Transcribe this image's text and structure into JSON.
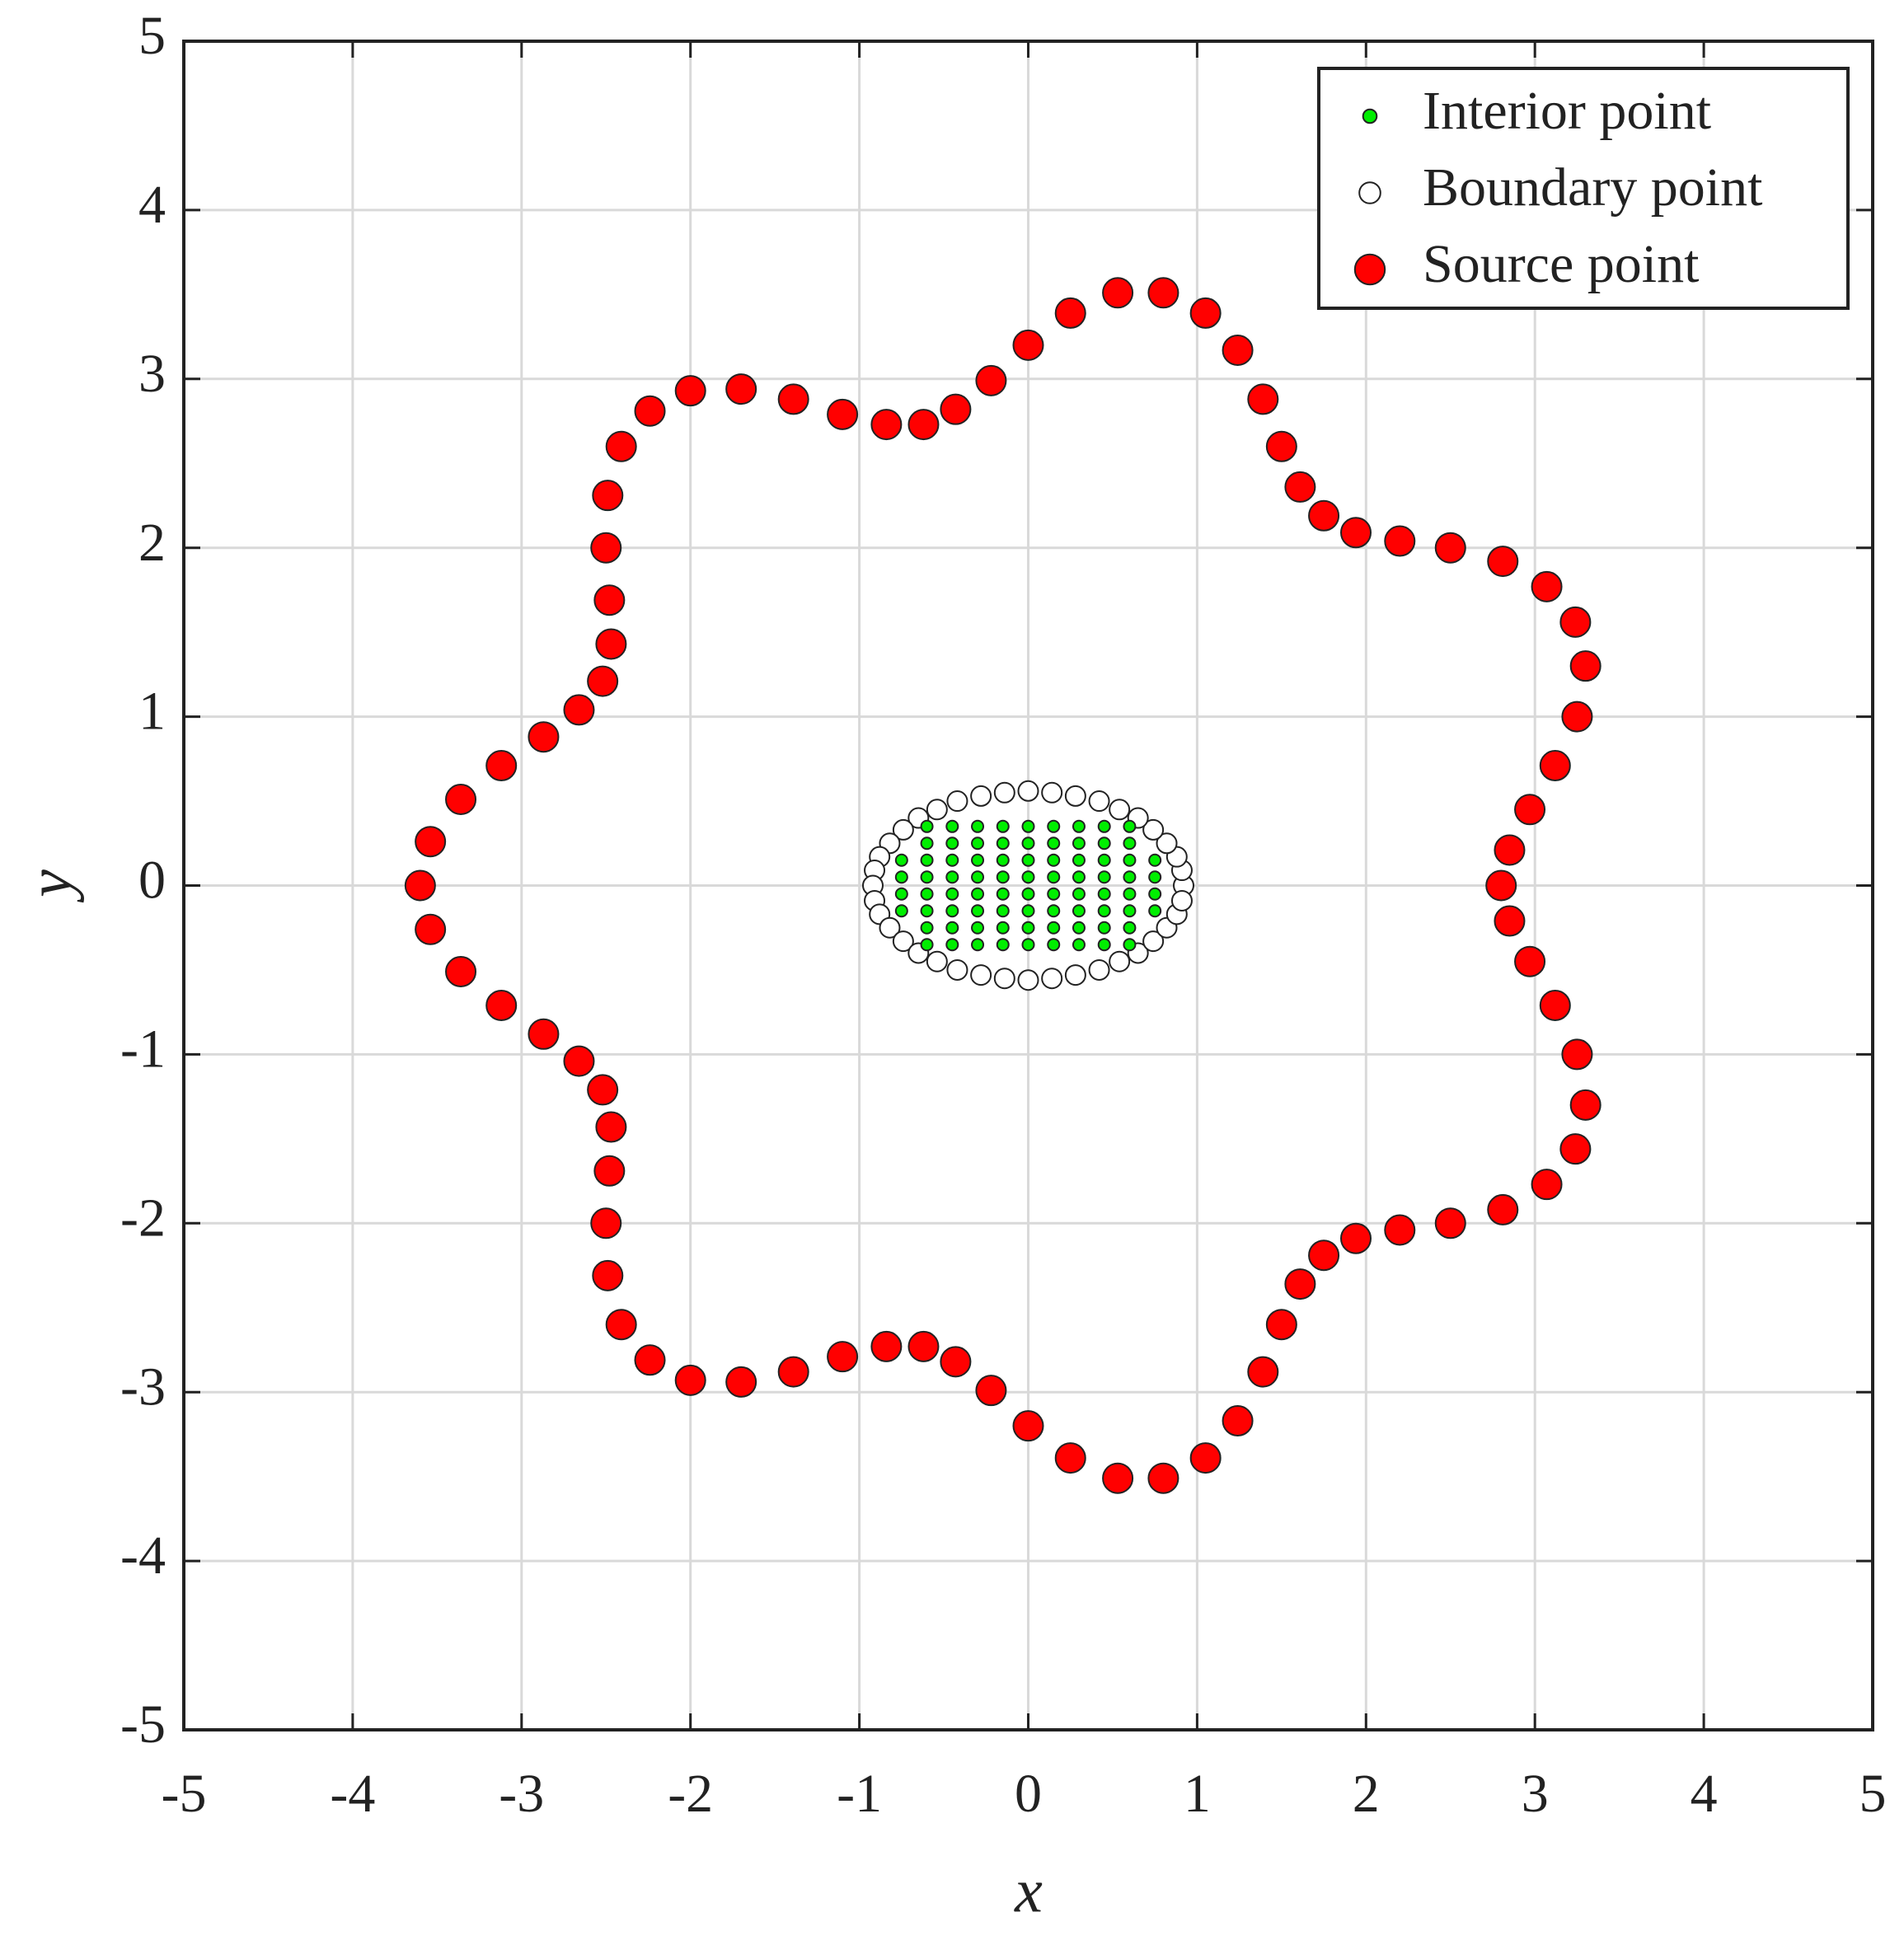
{
  "chart_data": {
    "type": "scatter",
    "xlabel": "x",
    "ylabel": "y",
    "xlim": [
      -5,
      5
    ],
    "ylim": [
      -5,
      5
    ],
    "xticks": [
      -5,
      -4,
      -3,
      -2,
      -1,
      0,
      1,
      2,
      3,
      4,
      5
    ],
    "yticks": [
      -5,
      -4,
      -3,
      -2,
      -1,
      0,
      1,
      2,
      3,
      4,
      5
    ],
    "grid": true,
    "legend": "upper right",
    "series": [
      {
        "name": "Interior point",
        "color": "#00ee00",
        "x": [
          -0.6,
          -0.45,
          -0.3,
          -0.15,
          0,
          0.15,
          0.3,
          0.45,
          0.6,
          -0.6,
          -0.45,
          -0.3,
          -0.15,
          0,
          0.15,
          0.3,
          0.45,
          0.6,
          -0.75,
          -0.6,
          -0.45,
          -0.3,
          -0.15,
          0,
          0.15,
          0.3,
          0.45,
          0.6,
          0.75,
          -0.75,
          -0.6,
          -0.45,
          -0.3,
          -0.15,
          0,
          0.15,
          0.3,
          0.45,
          0.6,
          0.75,
          -0.75,
          -0.6,
          -0.45,
          -0.3,
          -0.15,
          0,
          0.15,
          0.3,
          0.45,
          0.6,
          0.75,
          -0.75,
          -0.6,
          -0.45,
          -0.3,
          -0.15,
          0,
          0.15,
          0.3,
          0.45,
          0.6,
          0.75,
          -0.6,
          -0.45,
          -0.3,
          -0.15,
          0,
          0.15,
          0.3,
          0.45,
          0.6,
          -0.6,
          -0.45,
          -0.3,
          -0.15,
          0,
          0.15,
          0.3,
          0.45,
          0.6
        ],
        "values": [
          0.35,
          0.35,
          0.35,
          0.35,
          0.35,
          0.35,
          0.35,
          0.35,
          0.35,
          0.25,
          0.25,
          0.25,
          0.25,
          0.25,
          0.25,
          0.25,
          0.25,
          0.25,
          0.15,
          0.15,
          0.15,
          0.15,
          0.15,
          0.15,
          0.15,
          0.15,
          0.15,
          0.15,
          0.15,
          0.05,
          0.05,
          0.05,
          0.05,
          0.05,
          0.05,
          0.05,
          0.05,
          0.05,
          0.05,
          0.05,
          -0.05,
          -0.05,
          -0.05,
          -0.05,
          -0.05,
          -0.05,
          -0.05,
          -0.05,
          -0.05,
          -0.05,
          -0.05,
          -0.15,
          -0.15,
          -0.15,
          -0.15,
          -0.15,
          -0.15,
          -0.15,
          -0.15,
          -0.15,
          -0.15,
          -0.15,
          -0.25,
          -0.25,
          -0.25,
          -0.25,
          -0.25,
          -0.25,
          -0.25,
          -0.25,
          -0.25,
          -0.35,
          -0.35,
          -0.35,
          -0.35,
          -0.35,
          -0.35,
          -0.35,
          -0.35,
          -0.35
        ]
      },
      {
        "name": "Boundary point",
        "color": "#ffffff",
        "x": [
          0.92,
          0.91,
          0.88,
          0.82,
          0.74,
          0.65,
          0.54,
          0.42,
          0.28,
          0.14,
          0,
          -0.14,
          -0.28,
          -0.42,
          -0.54,
          -0.65,
          -0.74,
          -0.82,
          -0.88,
          -0.91,
          -0.92,
          -0.91,
          -0.88,
          -0.82,
          -0.74,
          -0.65,
          -0.54,
          -0.42,
          -0.28,
          -0.14,
          0,
          0.14,
          0.28,
          0.42,
          0.54,
          0.65,
          0.74,
          0.82,
          0.88,
          0.91
        ],
        "values": [
          0,
          0.09,
          0.17,
          0.25,
          0.33,
          0.4,
          0.45,
          0.5,
          0.53,
          0.55,
          0.56,
          0.55,
          0.53,
          0.5,
          0.45,
          0.4,
          0.33,
          0.25,
          0.17,
          0.09,
          0,
          -0.09,
          -0.17,
          -0.25,
          -0.33,
          -0.4,
          -0.45,
          -0.5,
          -0.53,
          -0.55,
          -0.56,
          -0.55,
          -0.53,
          -0.5,
          -0.45,
          -0.4,
          -0.33,
          -0.25,
          -0.17,
          -0.09
        ]
      },
      {
        "name": "Source point",
        "color": "#ff0000",
        "x": [
          2.8,
          2.85,
          2.97,
          3.12,
          3.25,
          3.3,
          3.24,
          3.07,
          2.81,
          2.5,
          2.2,
          1.94,
          1.75,
          1.61,
          1.5,
          1.39,
          1.24,
          1.05,
          0.8,
          0.53,
          0.25,
          0,
          -0.22,
          -0.43,
          -0.62,
          -0.84,
          -1.1,
          -1.39,
          -1.7,
          -2,
          -2.24,
          -2.41,
          -2.49,
          -2.5,
          -2.48,
          -2.47,
          -2.52,
          -2.66,
          -2.87,
          -3.12,
          -3.36,
          -3.54,
          -3.6,
          -3.54,
          -3.36,
          -3.12,
          -2.87,
          -2.66,
          -2.52,
          -2.47,
          -2.48,
          -2.5,
          -2.49,
          -2.41,
          -2.24,
          -2,
          -1.7,
          -1.39,
          -1.1,
          -0.84,
          -0.62,
          -0.43,
          -0.22,
          0,
          0.25,
          0.53,
          0.8,
          1.05,
          1.24,
          1.39,
          1.5,
          1.61,
          1.75,
          1.94,
          2.2,
          2.5,
          2.81,
          3.07,
          3.24,
          3.3,
          3.25,
          3.12,
          2.97,
          2.85
        ],
        "values": [
          0,
          0.21,
          0.45,
          0.71,
          1,
          1.3,
          1.56,
          1.77,
          1.92,
          2,
          2.04,
          2.09,
          2.19,
          2.36,
          2.6,
          2.88,
          3.17,
          3.39,
          3.51,
          3.51,
          3.39,
          3.2,
          2.99,
          2.82,
          2.73,
          2.73,
          2.79,
          2.88,
          2.94,
          2.93,
          2.81,
          2.6,
          2.31,
          2,
          1.69,
          1.43,
          1.21,
          1.04,
          0.88,
          0.71,
          0.51,
          0.26,
          0,
          -0.26,
          -0.51,
          -0.71,
          -0.88,
          -1.04,
          -1.21,
          -1.43,
          -1.69,
          -2,
          -2.31,
          -2.6,
          -2.81,
          -2.93,
          -2.94,
          -2.88,
          -2.79,
          -2.73,
          -2.73,
          -2.82,
          -2.99,
          -3.2,
          -3.39,
          -3.51,
          -3.51,
          -3.39,
          -3.17,
          -2.88,
          -2.6,
          -2.36,
          -2.19,
          -2.09,
          -2.04,
          -2,
          -1.92,
          -1.77,
          -1.56,
          -1.3,
          -1,
          -0.71,
          -0.45,
          -0.21
        ]
      }
    ]
  }
}
